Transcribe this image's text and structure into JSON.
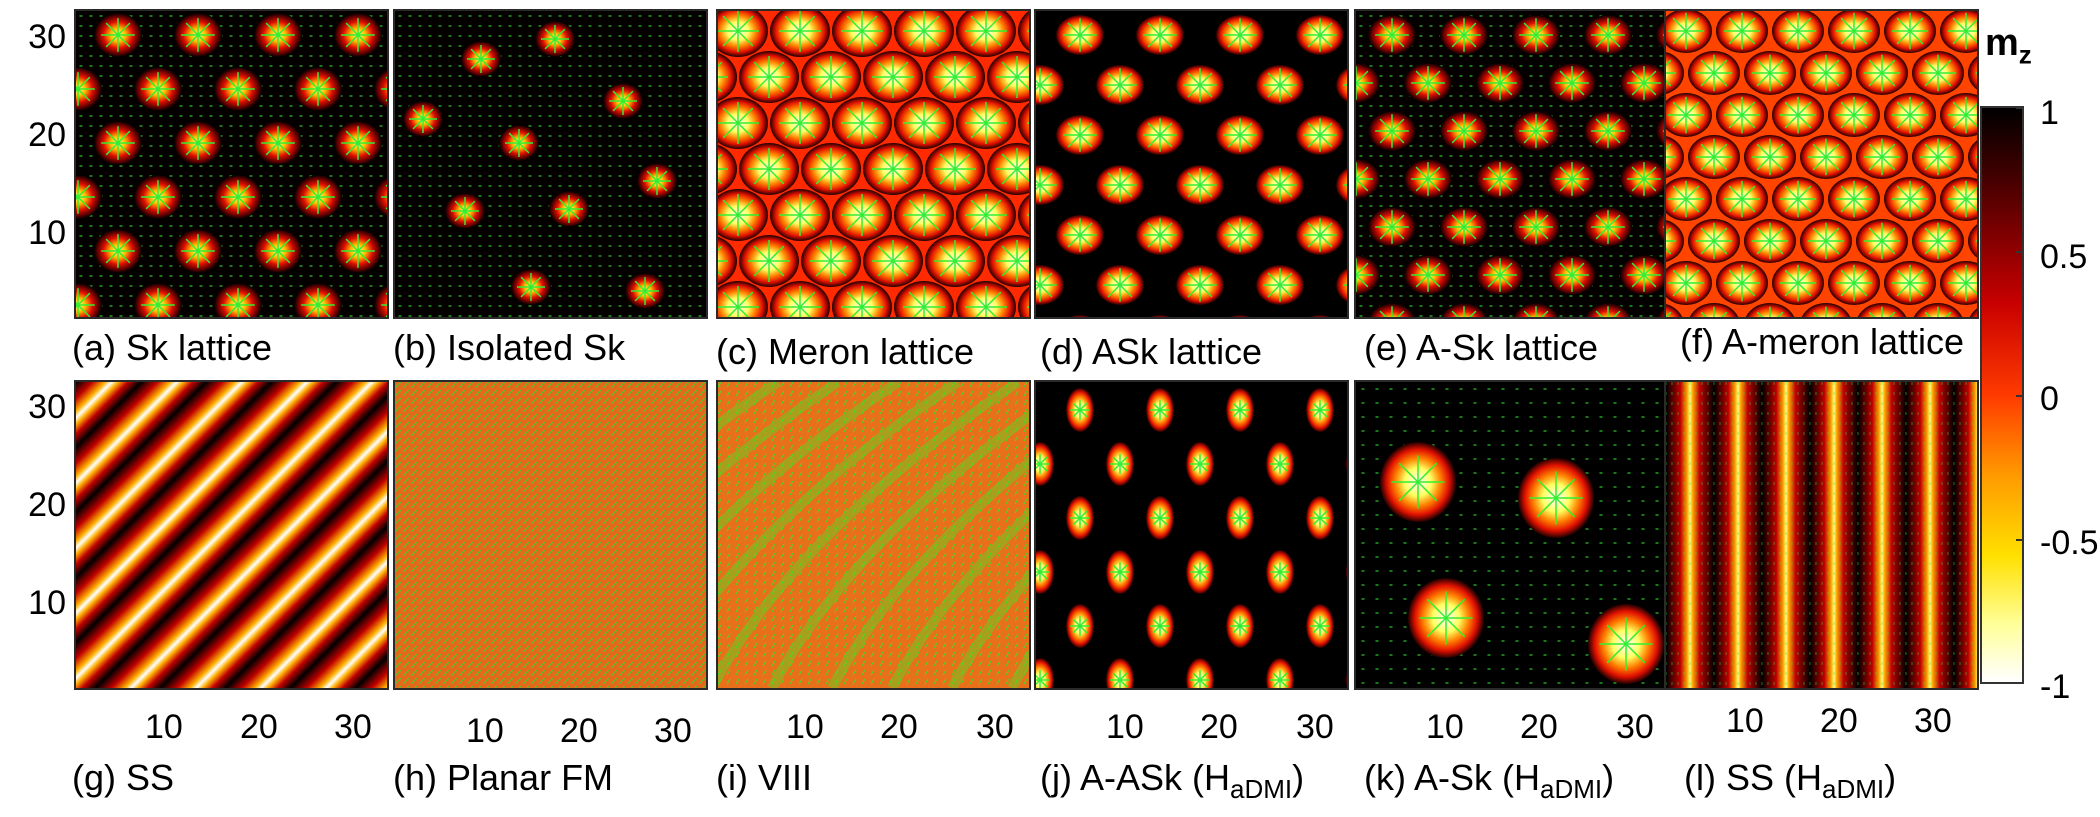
{
  "colorbar": {
    "title_main": "m",
    "title_sub": "z",
    "ticks": [
      "1",
      "0.5",
      "0",
      "-0.5",
      "-1"
    ]
  },
  "axis_ticks": {
    "y": [
      "30",
      "20",
      "10"
    ],
    "x": [
      "10",
      "20",
      "30"
    ]
  },
  "colors": {
    "panel_border": "#2a2a2a",
    "arrow_green": "#33ee33",
    "core_red": "#e01000",
    "core_yellow": "#ffff80",
    "background_dark": "#050000"
  },
  "panels": [
    {
      "label": "(a) Sk lattice",
      "label_sub": "",
      "label_end": ""
    },
    {
      "label": "(b) Isolated Sk",
      "label_sub": "",
      "label_end": ""
    },
    {
      "label": "(c) Meron lattice",
      "label_sub": "",
      "label_end": ""
    },
    {
      "label": "(d) ASk lattice",
      "label_sub": "",
      "label_end": ""
    },
    {
      "label": "(e) A-Sk lattice",
      "label_sub": "",
      "label_end": ""
    },
    {
      "label": "(f) A-meron lattice",
      "label_sub": "",
      "label_end": ""
    },
    {
      "label": "(g) SS",
      "label_sub": "",
      "label_end": ""
    },
    {
      "label": "(h) Planar FM",
      "label_sub": "",
      "label_end": ""
    },
    {
      "label": "(i) VIII",
      "label_sub": "",
      "label_end": ""
    },
    {
      "label": "(j) A-ASk (H",
      "label_sub": "aDMI",
      "label_end": ")"
    },
    {
      "label": "(k) A-Sk (H",
      "label_sub": "aDMI",
      "label_end": ")"
    },
    {
      "label": "(l) SS (H",
      "label_sub": "aDMI",
      "label_end": ")"
    }
  ]
}
